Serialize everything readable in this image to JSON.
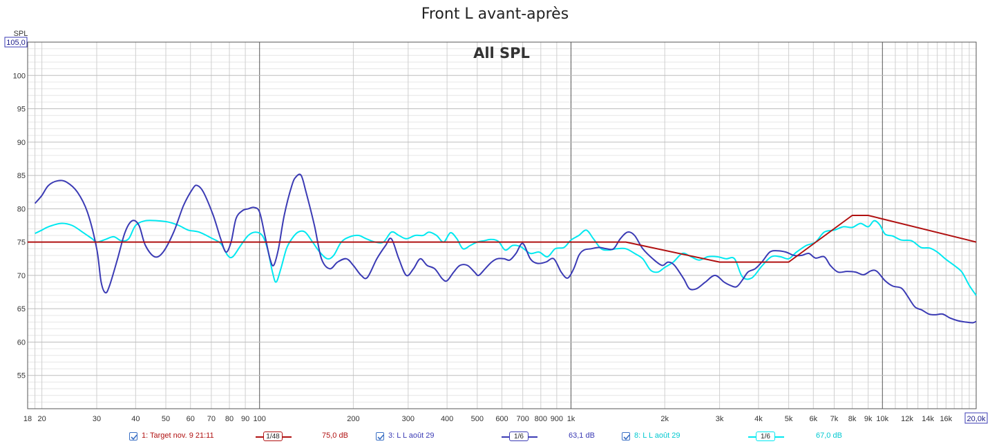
{
  "chart_data": {
    "type": "line",
    "title": "Front L avant-après",
    "subtitle": "All SPL",
    "ylabel": "SPL",
    "ylim": [
      50,
      105
    ],
    "ymax_box": "105,0",
    "xmax_box": "20,0k",
    "xscale": "log",
    "xlim": [
      18,
      20000
    ],
    "yticks": [
      55,
      60,
      65,
      70,
      75,
      80,
      85,
      90,
      95,
      100
    ],
    "xticks": [
      {
        "v": 18,
        "l": "18"
      },
      {
        "v": 20,
        "l": "20"
      },
      {
        "v": 30,
        "l": "30"
      },
      {
        "v": 40,
        "l": "40"
      },
      {
        "v": 50,
        "l": "50"
      },
      {
        "v": 60,
        "l": "60"
      },
      {
        "v": 70,
        "l": "70"
      },
      {
        "v": 80,
        "l": "80"
      },
      {
        "v": 90,
        "l": "90"
      },
      {
        "v": 100,
        "l": "100"
      },
      {
        "v": 200,
        "l": "200"
      },
      {
        "v": 300,
        "l": "300"
      },
      {
        "v": 400,
        "l": "400"
      },
      {
        "v": 500,
        "l": "500"
      },
      {
        "v": 600,
        "l": "600"
      },
      {
        "v": 700,
        "l": "700"
      },
      {
        "v": 800,
        "l": "800"
      },
      {
        "v": 900,
        "l": "900"
      },
      {
        "v": 1000,
        "l": "1k"
      },
      {
        "v": 2000,
        "l": "2k"
      },
      {
        "v": 3000,
        "l": "3k"
      },
      {
        "v": 4000,
        "l": "4k"
      },
      {
        "v": 5000,
        "l": "5k"
      },
      {
        "v": 6000,
        "l": "6k"
      },
      {
        "v": 7000,
        "l": "7k"
      },
      {
        "v": 8000,
        "l": "8k"
      },
      {
        "v": 9000,
        "l": "9k"
      },
      {
        "v": 10000,
        "l": "10k"
      },
      {
        "v": 12000,
        "l": "12k"
      },
      {
        "v": 14000,
        "l": "14k"
      },
      {
        "v": 16000,
        "l": "16k"
      }
    ],
    "grid": true,
    "series": [
      {
        "name": "1: Target nov. 9 21:11",
        "color": "#b01010",
        "smoothing": "1/48",
        "value_at_cursor": "75,0 dB",
        "points": [
          [
            18,
            75
          ],
          [
            1500,
            75
          ],
          [
            3000,
            72
          ],
          [
            5000,
            72
          ],
          [
            8000,
            79
          ],
          [
            9000,
            79
          ],
          [
            20000,
            75
          ]
        ]
      },
      {
        "name": "3: L L août 29",
        "color": "#3a3ab4",
        "smoothing": "1/6",
        "value_at_cursor": "63,1 dB",
        "points": [
          [
            19,
            80.8
          ],
          [
            20,
            82
          ],
          [
            21,
            83.5
          ],
          [
            22.5,
            84.2
          ],
          [
            24,
            84
          ],
          [
            26,
            82.5
          ],
          [
            28,
            79.5
          ],
          [
            30,
            74
          ],
          [
            31,
            69
          ],
          [
            32,
            67.4
          ],
          [
            33,
            68.5
          ],
          [
            35,
            72.5
          ],
          [
            37,
            76.5
          ],
          [
            39,
            78.2
          ],
          [
            41,
            77.5
          ],
          [
            43,
            74.5
          ],
          [
            46,
            72.8
          ],
          [
            49,
            73.5
          ],
          [
            53,
            76.5
          ],
          [
            57,
            80.5
          ],
          [
            61,
            83
          ],
          [
            63,
            83.5
          ],
          [
            66,
            82.5
          ],
          [
            71,
            79
          ],
          [
            75,
            75.5
          ],
          [
            78,
            73.5
          ],
          [
            81,
            75
          ],
          [
            84,
            78.5
          ],
          [
            88,
            79.7
          ],
          [
            92,
            80
          ],
          [
            96,
            80.2
          ],
          [
            100,
            79.5
          ],
          [
            104,
            76
          ],
          [
            108,
            72.5
          ],
          [
            111,
            71.5
          ],
          [
            115,
            74
          ],
          [
            120,
            79
          ],
          [
            127,
            83.5
          ],
          [
            131,
            84.8
          ],
          [
            136,
            85
          ],
          [
            141,
            82.5
          ],
          [
            150,
            77.5
          ],
          [
            158,
            72.5
          ],
          [
            168,
            71
          ],
          [
            178,
            72
          ],
          [
            190,
            72.5
          ],
          [
            200,
            71.5
          ],
          [
            212,
            70
          ],
          [
            222,
            69.7
          ],
          [
            238,
            72.5
          ],
          [
            254,
            74.5
          ],
          [
            265,
            75.5
          ],
          [
            280,
            72.5
          ],
          [
            296,
            70
          ],
          [
            312,
            71
          ],
          [
            328,
            72.5
          ],
          [
            345,
            71.5
          ],
          [
            365,
            71
          ],
          [
            386,
            69.5
          ],
          [
            400,
            69.2
          ],
          [
            420,
            70.5
          ],
          [
            440,
            71.5
          ],
          [
            465,
            71.5
          ],
          [
            490,
            70.5
          ],
          [
            505,
            70
          ],
          [
            530,
            71
          ],
          [
            556,
            72
          ],
          [
            580,
            72.5
          ],
          [
            610,
            72.5
          ],
          [
            636,
            72.3
          ],
          [
            666,
            73.3
          ],
          [
            700,
            74.8
          ],
          [
            740,
            72.5
          ],
          [
            780,
            71.8
          ],
          [
            830,
            72
          ],
          [
            880,
            72.5
          ],
          [
            930,
            70.5
          ],
          [
            975,
            69.6
          ],
          [
            1020,
            71
          ],
          [
            1060,
            73
          ],
          [
            1100,
            73.8
          ],
          [
            1160,
            74
          ],
          [
            1230,
            74.2
          ],
          [
            1300,
            74
          ],
          [
            1370,
            74
          ],
          [
            1440,
            75.5
          ],
          [
            1520,
            76.5
          ],
          [
            1600,
            76
          ],
          [
            1700,
            74
          ],
          [
            1830,
            72.5
          ],
          [
            1960,
            71.5
          ],
          [
            2050,
            72
          ],
          [
            2150,
            71.5
          ],
          [
            2300,
            69.5
          ],
          [
            2400,
            68
          ],
          [
            2530,
            68
          ],
          [
            2700,
            69
          ],
          [
            2900,
            70
          ],
          [
            3100,
            69
          ],
          [
            3250,
            68.5
          ],
          [
            3400,
            68.3
          ],
          [
            3550,
            69.3
          ],
          [
            3700,
            70.5
          ],
          [
            3900,
            71
          ],
          [
            4100,
            72
          ],
          [
            4350,
            73.5
          ],
          [
            4600,
            73.7
          ],
          [
            4900,
            73.5
          ],
          [
            5200,
            73
          ],
          [
            5500,
            73
          ],
          [
            5800,
            73.3
          ],
          [
            6100,
            72.6
          ],
          [
            6500,
            72.8
          ],
          [
            6800,
            71.5
          ],
          [
            7200,
            70.5
          ],
          [
            7700,
            70.6
          ],
          [
            8200,
            70.5
          ],
          [
            8700,
            70.1
          ],
          [
            9200,
            70.7
          ],
          [
            9600,
            70.6
          ],
          [
            10200,
            69.2
          ],
          [
            10800,
            68.4
          ],
          [
            11500,
            68.1
          ],
          [
            12000,
            67
          ],
          [
            12700,
            65.3
          ],
          [
            13400,
            64.8
          ],
          [
            14100,
            64.2
          ],
          [
            14800,
            64.1
          ],
          [
            15600,
            64.2
          ],
          [
            16500,
            63.6
          ],
          [
            17500,
            63.2
          ],
          [
            18500,
            63
          ],
          [
            19500,
            62.9
          ],
          [
            20000,
            63.1
          ]
        ]
      },
      {
        "name": "8: L L août 29",
        "color": "#00e8f0",
        "smoothing": "1/6",
        "value_at_cursor": "67,0 dB",
        "points": [
          [
            19,
            76.3
          ],
          [
            20,
            76.8
          ],
          [
            21,
            77.3
          ],
          [
            23,
            77.8
          ],
          [
            25,
            77.5
          ],
          [
            27,
            76.5
          ],
          [
            29,
            75.5
          ],
          [
            30,
            75
          ],
          [
            32,
            75.4
          ],
          [
            34,
            75.8
          ],
          [
            36,
            75.2
          ],
          [
            38,
            75.5
          ],
          [
            40,
            77.5
          ],
          [
            43,
            78.2
          ],
          [
            47,
            78.2
          ],
          [
            51,
            78
          ],
          [
            55,
            77.5
          ],
          [
            59,
            76.8
          ],
          [
            64,
            76.5
          ],
          [
            70,
            75.6
          ],
          [
            75,
            74.8
          ],
          [
            79,
            73
          ],
          [
            82,
            72.8
          ],
          [
            87,
            74.5
          ],
          [
            92,
            76
          ],
          [
            97,
            76.5
          ],
          [
            102,
            76
          ],
          [
            106,
            74
          ],
          [
            110,
            70.5
          ],
          [
            113,
            69
          ],
          [
            117,
            71
          ],
          [
            122,
            74
          ],
          [
            127,
            75.5
          ],
          [
            133,
            76.5
          ],
          [
            140,
            76.5
          ],
          [
            148,
            75
          ],
          [
            156,
            73.5
          ],
          [
            165,
            72.5
          ],
          [
            173,
            73
          ],
          [
            183,
            75
          ],
          [
            195,
            75.8
          ],
          [
            208,
            76
          ],
          [
            220,
            75.5
          ],
          [
            235,
            75
          ],
          [
            250,
            75
          ],
          [
            265,
            76.5
          ],
          [
            280,
            76
          ],
          [
            296,
            75.5
          ],
          [
            316,
            76
          ],
          [
            335,
            76
          ],
          [
            350,
            76.5
          ],
          [
            370,
            76
          ],
          [
            390,
            75
          ],
          [
            410,
            76.4
          ],
          [
            430,
            75.5
          ],
          [
            450,
            74
          ],
          [
            475,
            74.5
          ],
          [
            500,
            75
          ],
          [
            525,
            75.2
          ],
          [
            555,
            75.4
          ],
          [
            585,
            75.1
          ],
          [
            615,
            73.8
          ],
          [
            650,
            74.5
          ],
          [
            690,
            74.3
          ],
          [
            740,
            73.3
          ],
          [
            790,
            73.5
          ],
          [
            840,
            72.8
          ],
          [
            890,
            74
          ],
          [
            950,
            74.2
          ],
          [
            1000,
            75.3
          ],
          [
            1060,
            76
          ],
          [
            1120,
            76.8
          ],
          [
            1180,
            75.5
          ],
          [
            1250,
            74
          ],
          [
            1320,
            73.8
          ],
          [
            1400,
            74
          ],
          [
            1500,
            74
          ],
          [
            1600,
            73.3
          ],
          [
            1700,
            72.5
          ],
          [
            1800,
            70.8
          ],
          [
            1900,
            70.5
          ],
          [
            2000,
            71.2
          ],
          [
            2130,
            72
          ],
          [
            2280,
            73.3
          ],
          [
            2430,
            72.8
          ],
          [
            2580,
            72.3
          ],
          [
            2750,
            72.8
          ],
          [
            2950,
            72.8
          ],
          [
            3150,
            72.5
          ],
          [
            3350,
            72.5
          ],
          [
            3550,
            69.8
          ],
          [
            3800,
            69.6
          ],
          [
            4100,
            71.4
          ],
          [
            4400,
            72.8
          ],
          [
            4700,
            72.8
          ],
          [
            5000,
            72.5
          ],
          [
            5300,
            73.5
          ],
          [
            5700,
            74.5
          ],
          [
            6100,
            75
          ],
          [
            6500,
            76.5
          ],
          [
            7000,
            76.8
          ],
          [
            7500,
            77.3
          ],
          [
            8000,
            77.2
          ],
          [
            8500,
            77.8
          ],
          [
            9000,
            77.3
          ],
          [
            9400,
            78.2
          ],
          [
            9800,
            77.6
          ],
          [
            10200,
            76.2
          ],
          [
            10800,
            75.9
          ],
          [
            11500,
            75.3
          ],
          [
            12400,
            75.2
          ],
          [
            13300,
            74.2
          ],
          [
            14200,
            74.1
          ],
          [
            15000,
            73.5
          ],
          [
            16000,
            72.4
          ],
          [
            17000,
            71.5
          ],
          [
            18000,
            70.5
          ],
          [
            19000,
            68.5
          ],
          [
            20000,
            67
          ]
        ]
      }
    ]
  }
}
